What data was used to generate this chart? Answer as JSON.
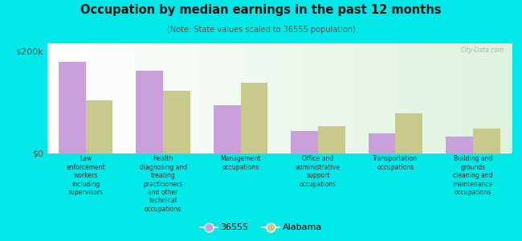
{
  "title": "Occupation by median earnings in the past 12 months",
  "subtitle": "(Note: State values scaled to 36555 population)",
  "categories": [
    "Law\nenforcement\nworkers\nincluding\nsupervisors",
    "Health\ndiagnosing and\ntreating\npractitioners\nand other\ntechnical\noccupations",
    "Management\noccupations",
    "Office and\nadministrative\nsupport\noccupations",
    "Transportation\noccupations",
    "Building and\ngrounds\ncleaning and\nmaintenance\noccupations"
  ],
  "values_36555": [
    178000,
    162000,
    93000,
    43000,
    38000,
    33000
  ],
  "values_alabama": [
    103000,
    122000,
    138000,
    53000,
    78000,
    48000
  ],
  "color_36555": "#c9a0dc",
  "color_alabama": "#c8ca8c",
  "background_outer": "#00e8e8",
  "ylim": [
    0,
    215000
  ],
  "ytick_labels": [
    "$0",
    "$200k"
  ],
  "ytick_vals": [
    0,
    200000
  ],
  "legend_label_36555": "36555",
  "legend_label_alabama": "Alabama",
  "watermark": "City-Data.com"
}
